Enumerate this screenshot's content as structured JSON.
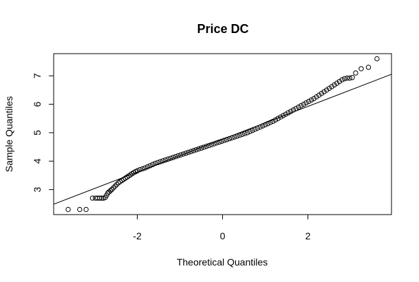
{
  "chart_data": {
    "type": "scatter",
    "title": "Price DC",
    "xlabel": "Theoretical Quantiles",
    "ylabel": "Sample Quantiles",
    "xlim": [
      -3.96,
      3.96
    ],
    "ylim": [
      2.12,
      7.78
    ],
    "xticks": [
      -2,
      0,
      2
    ],
    "xtick_labels": [
      "-2",
      "0",
      "2"
    ],
    "yticks": [
      3,
      4,
      5,
      6,
      7
    ],
    "ytick_labels": [
      "3",
      "4",
      "5",
      "6",
      "7"
    ],
    "grid": false,
    "marker": "open-circle",
    "reference_line": {
      "slope": 0.577,
      "intercept": 4.77
    },
    "points": [
      [
        -3.62,
        2.3
      ],
      [
        -3.35,
        2.3
      ],
      [
        -3.2,
        2.3
      ],
      [
        -3.05,
        2.7
      ],
      [
        -2.98,
        2.7
      ],
      [
        -2.93,
        2.7
      ],
      [
        -2.88,
        2.7
      ],
      [
        -2.83,
        2.7
      ],
      [
        -2.79,
        2.7
      ],
      [
        -2.75,
        2.72
      ],
      [
        -2.72,
        2.8
      ],
      [
        -2.69,
        2.88
      ],
      [
        -2.66,
        2.92
      ],
      [
        -2.63,
        2.96
      ],
      [
        -2.6,
        3.0
      ],
      [
        -2.56,
        3.06
      ],
      [
        -2.52,
        3.12
      ],
      [
        -2.48,
        3.18
      ],
      [
        -2.44,
        3.24
      ],
      [
        -2.4,
        3.28
      ],
      [
        -2.36,
        3.32
      ],
      [
        -2.32,
        3.36
      ],
      [
        -2.28,
        3.4
      ],
      [
        -2.24,
        3.44
      ],
      [
        -2.2,
        3.48
      ],
      [
        -2.16,
        3.52
      ],
      [
        -2.12,
        3.56
      ],
      [
        -2.08,
        3.6
      ],
      [
        -2.04,
        3.63
      ],
      [
        -2.0,
        3.66
      ],
      [
        -1.94,
        3.7
      ],
      [
        -1.88,
        3.73
      ],
      [
        -1.82,
        3.76
      ],
      [
        -1.76,
        3.8
      ],
      [
        -1.7,
        3.84
      ],
      [
        -1.64,
        3.88
      ],
      [
        -1.58,
        3.92
      ],
      [
        -1.52,
        3.95
      ],
      [
        -1.46,
        3.98
      ],
      [
        -1.4,
        4.01
      ],
      [
        -1.34,
        4.04
      ],
      [
        -1.28,
        4.07
      ],
      [
        -1.22,
        4.1
      ],
      [
        -1.16,
        4.13
      ],
      [
        -1.1,
        4.16
      ],
      [
        -1.04,
        4.19
      ],
      [
        -0.98,
        4.22
      ],
      [
        -0.92,
        4.25
      ],
      [
        -0.86,
        4.28
      ],
      [
        -0.8,
        4.31
      ],
      [
        -0.74,
        4.34
      ],
      [
        -0.68,
        4.37
      ],
      [
        -0.62,
        4.4
      ],
      [
        -0.56,
        4.43
      ],
      [
        -0.5,
        4.46
      ],
      [
        -0.44,
        4.49
      ],
      [
        -0.38,
        4.52
      ],
      [
        -0.32,
        4.55
      ],
      [
        -0.26,
        4.58
      ],
      [
        -0.2,
        4.61
      ],
      [
        -0.14,
        4.64
      ],
      [
        -0.08,
        4.67
      ],
      [
        -0.02,
        4.7
      ],
      [
        0.04,
        4.73
      ],
      [
        0.1,
        4.76
      ],
      [
        0.16,
        4.79
      ],
      [
        0.22,
        4.82
      ],
      [
        0.28,
        4.85
      ],
      [
        0.34,
        4.88
      ],
      [
        0.4,
        4.91
      ],
      [
        0.46,
        4.94
      ],
      [
        0.52,
        4.97
      ],
      [
        0.58,
        5.0
      ],
      [
        0.64,
        5.04
      ],
      [
        0.7,
        5.08
      ],
      [
        0.76,
        5.12
      ],
      [
        0.82,
        5.16
      ],
      [
        0.88,
        5.2
      ],
      [
        0.94,
        5.24
      ],
      [
        1.0,
        5.28
      ],
      [
        1.06,
        5.32
      ],
      [
        1.12,
        5.36
      ],
      [
        1.18,
        5.4
      ],
      [
        1.24,
        5.45
      ],
      [
        1.3,
        5.5
      ],
      [
        1.36,
        5.55
      ],
      [
        1.42,
        5.6
      ],
      [
        1.48,
        5.65
      ],
      [
        1.54,
        5.7
      ],
      [
        1.6,
        5.75
      ],
      [
        1.66,
        5.8
      ],
      [
        1.72,
        5.85
      ],
      [
        1.78,
        5.9
      ],
      [
        1.84,
        5.95
      ],
      [
        1.9,
        6.0
      ],
      [
        1.96,
        6.05
      ],
      [
        2.02,
        6.1
      ],
      [
        2.08,
        6.15
      ],
      [
        2.14,
        6.2
      ],
      [
        2.2,
        6.26
      ],
      [
        2.26,
        6.32
      ],
      [
        2.32,
        6.38
      ],
      [
        2.38,
        6.44
      ],
      [
        2.44,
        6.5
      ],
      [
        2.5,
        6.56
      ],
      [
        2.56,
        6.62
      ],
      [
        2.62,
        6.68
      ],
      [
        2.68,
        6.74
      ],
      [
        2.74,
        6.8
      ],
      [
        2.8,
        6.86
      ],
      [
        2.86,
        6.9
      ],
      [
        2.92,
        6.92
      ],
      [
        2.98,
        6.92
      ],
      [
        3.04,
        6.94
      ],
      [
        3.12,
        7.1
      ],
      [
        3.25,
        7.25
      ],
      [
        3.42,
        7.3
      ],
      [
        3.62,
        7.6
      ]
    ]
  }
}
